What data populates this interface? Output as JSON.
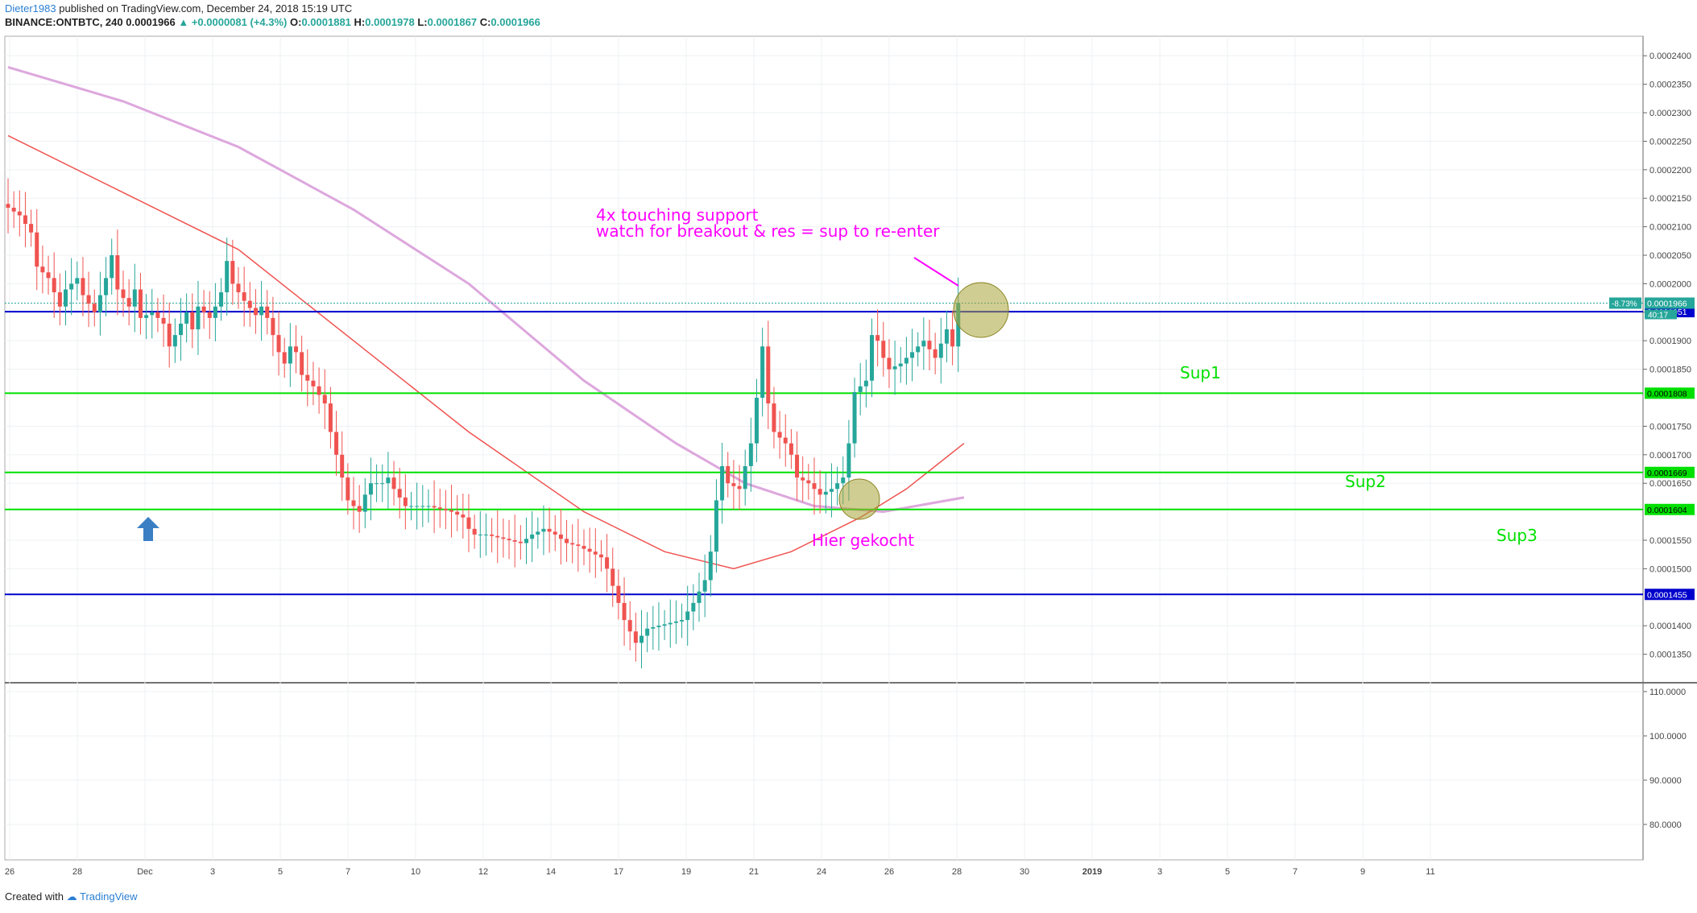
{
  "header": {
    "author": "Dieter1983",
    "published_text": "published on TradingView.com, December 24, 2018 15:19 UTC",
    "symbol_interval": "BINANCE:ONTBTC, 240",
    "last": "0.0001966",
    "change": "+0.0000081 (+4.3%)",
    "o_label": "O:",
    "o": "0.0001881",
    "h_label": "H:",
    "h": "0.0001978",
    "l_label": "L:",
    "l": "0.0001867",
    "c_label": "C:",
    "c": "0.0001966"
  },
  "footer": {
    "created_with": "Created with",
    "brand": "TradingView"
  },
  "colors": {
    "up": "#26a69a",
    "down": "#ef5350",
    "green_line": "#00e000",
    "blue_line": "#0000cc",
    "ma_red": "#ef5350",
    "ma_purple": "#dda7dd",
    "annotation": "#ff00ff",
    "circle": "#aaa43a",
    "arrow": "#3a7fc4"
  },
  "chart_data": {
    "type": "candlestick",
    "ylim": [
      0.00013,
      0.000243
    ],
    "y_ticks": [
      "0.0002400",
      "0.0002350",
      "0.0002300",
      "0.0002250",
      "0.0002200",
      "0.0002150",
      "0.0002100",
      "0.0002050",
      "0.0002000",
      "0.0001950",
      "0.0001900",
      "0.0001850",
      "0.0001750",
      "0.0001700",
      "0.0001650",
      "0.0001550",
      "0.0001500",
      "0.0001400",
      "0.0001350"
    ],
    "x_ticks": [
      "26",
      "28",
      "Dec",
      "3",
      "5",
      "7",
      "10",
      "12",
      "14",
      "17",
      "19",
      "21",
      "24",
      "26",
      "28",
      "30",
      "2019",
      "3",
      "5",
      "7",
      "9",
      "11"
    ],
    "horizontal_lines": [
      {
        "value": 0.0001951,
        "color": "blue",
        "label": "0.0001951"
      },
      {
        "value": 0.0001808,
        "color": "green",
        "label": "0.0001808"
      },
      {
        "value": 0.0001669,
        "color": "green",
        "label": "0.0001669"
      },
      {
        "value": 0.0001604,
        "color": "green",
        "label": "0.0001604"
      },
      {
        "value": 0.0001455,
        "color": "blue",
        "label": "0.0001455"
      }
    ],
    "price_label": {
      "value": 0.0001966,
      "text": "0.0001966",
      "change": "-8.73%",
      "countdown": "40:17"
    },
    "zone_labels": [
      "Sup1",
      "Sup2",
      "Sup3"
    ],
    "annotations": {
      "line1": "4x touching support",
      "line2": "watch for breakout & res = sup to re-enter",
      "bought": "Hier gekocht"
    },
    "indicator_ticks": [
      "110.0000",
      "100.0000",
      "90.0000",
      "80.0000"
    ],
    "indicator_ylim": [
      72,
      112
    ],
    "series_path": [
      [
        0,
        0.000214
      ],
      [
        1.5,
        0.000212
      ],
      [
        2.5,
        0.000209
      ],
      [
        3,
        0.000203
      ],
      [
        4,
        0.000201
      ],
      [
        5,
        0.000196
      ],
      [
        5.5,
        0.000199
      ],
      [
        6.5,
        0.000201
      ],
      [
        7,
        0.000198
      ],
      [
        8,
        0.000195
      ],
      [
        9,
        0.000201
      ],
      [
        9.5,
        0.000205
      ],
      [
        10,
        0.000199
      ],
      [
        11,
        0.000196
      ],
      [
        11.5,
        0.000199
      ],
      [
        12,
        0.000194
      ],
      [
        13,
        0.000195
      ],
      [
        14,
        0.000193
      ],
      [
        14.5,
        0.000189
      ],
      [
        15,
        0.000191
      ],
      [
        16,
        0.000195
      ],
      [
        16.5,
        0.000192
      ],
      [
        17,
        0.000196
      ],
      [
        18,
        0.000194
      ],
      [
        18.5,
        0.000196
      ],
      [
        19,
        0.0001985
      ],
      [
        19.5,
        0.000204
      ],
      [
        20,
        0.0002
      ],
      [
        21,
        0.000197
      ],
      [
        22,
        0.0001945
      ],
      [
        22.5,
        0.000196
      ],
      [
        23,
        0.000194
      ],
      [
        24,
        0.000188
      ],
      [
        24.5,
        0.000186
      ],
      [
        25,
        0.000189
      ],
      [
        25.5,
        0.000188
      ],
      [
        26,
        0.000184
      ],
      [
        27,
        0.000182
      ],
      [
        28,
        0.000179
      ],
      [
        28.5,
        0.000174
      ],
      [
        29,
        0.00017
      ],
      [
        29.5,
        0.000166
      ],
      [
        30,
        0.000162
      ],
      [
        31,
        0.00016
      ],
      [
        31.5,
        0.000163
      ],
      [
        32,
        0.000165
      ],
      [
        33,
        0.000165
      ],
      [
        33.5,
        0.000166
      ],
      [
        34,
        0.000164
      ],
      [
        35,
        0.000161
      ],
      [
        36,
        0.000161
      ],
      [
        37,
        0.000161
      ],
      [
        38,
        0.0001605
      ],
      [
        39,
        0.00016
      ],
      [
        40,
        0.000159
      ],
      [
        40.5,
        0.000157
      ],
      [
        41,
        0.000156
      ],
      [
        42,
        0.000156
      ],
      [
        43,
        0.0001555
      ],
      [
        44,
        0.000155
      ],
      [
        45,
        0.0001545
      ],
      [
        46,
        0.000156
      ],
      [
        47,
        0.000157
      ],
      [
        48,
        0.000156
      ],
      [
        49,
        0.0001545
      ],
      [
        50,
        0.000154
      ],
      [
        51,
        0.000153
      ],
      [
        52,
        0.000152
      ],
      [
        52.5,
        0.00015
      ],
      [
        53,
        0.000147
      ],
      [
        53.5,
        0.000144
      ],
      [
        54,
        0.000141
      ],
      [
        55,
        0.000137
      ],
      [
        56,
        0.0001395
      ],
      [
        57,
        0.00014
      ],
      [
        58,
        0.0001405
      ],
      [
        59,
        0.000141
      ],
      [
        60,
        0.000144
      ],
      [
        61,
        0.000148
      ],
      [
        61.5,
        0.000153
      ],
      [
        62,
        0.000162
      ],
      [
        62.5,
        0.000168
      ],
      [
        63,
        0.000165
      ],
      [
        64,
        0.000164
      ],
      [
        65,
        0.000172
      ],
      [
        65.5,
        0.00018
      ],
      [
        66,
        0.000189
      ],
      [
        66.5,
        0.000179
      ],
      [
        67,
        0.000174
      ],
      [
        68,
        0.000172
      ],
      [
        68.5,
        0.00017
      ],
      [
        69,
        0.000166
      ],
      [
        70,
        0.000165
      ],
      [
        71,
        0.000163
      ],
      [
        72,
        0.000164
      ],
      [
        73,
        0.000166
      ],
      [
        73.5,
        0.000172
      ],
      [
        74,
        0.000181
      ],
      [
        75,
        0.000183
      ],
      [
        75.5,
        0.000191
      ],
      [
        76,
        0.00019
      ],
      [
        76.5,
        0.000187
      ],
      [
        77,
        0.000185
      ],
      [
        78,
        0.000186
      ],
      [
        79,
        0.000188
      ],
      [
        80,
        0.00019
      ],
      [
        81,
        0.000187
      ],
      [
        82,
        0.000192
      ],
      [
        82.5,
        0.000189
      ],
      [
        83,
        0.0001966
      ]
    ],
    "ma_red": [
      [
        0,
        0.000226
      ],
      [
        10,
        0.000216
      ],
      [
        20,
        0.000206
      ],
      [
        30,
        0.00019
      ],
      [
        40,
        0.000174
      ],
      [
        50,
        0.00016
      ],
      [
        57,
        0.000153
      ],
      [
        63,
        0.00015
      ],
      [
        68,
        0.000153
      ],
      [
        74,
        0.000159
      ],
      [
        78,
        0.000164
      ],
      [
        83,
        0.000172
      ]
    ],
    "ma_purple": [
      [
        0,
        0.000238
      ],
      [
        10,
        0.000232
      ],
      [
        20,
        0.000224
      ],
      [
        30,
        0.000213
      ],
      [
        40,
        0.0002
      ],
      [
        50,
        0.000183
      ],
      [
        58,
        0.000172
      ],
      [
        64,
        0.000165
      ],
      [
        70,
        0.000161
      ],
      [
        76,
        0.00016
      ],
      [
        83,
        0.0001625
      ]
    ]
  }
}
